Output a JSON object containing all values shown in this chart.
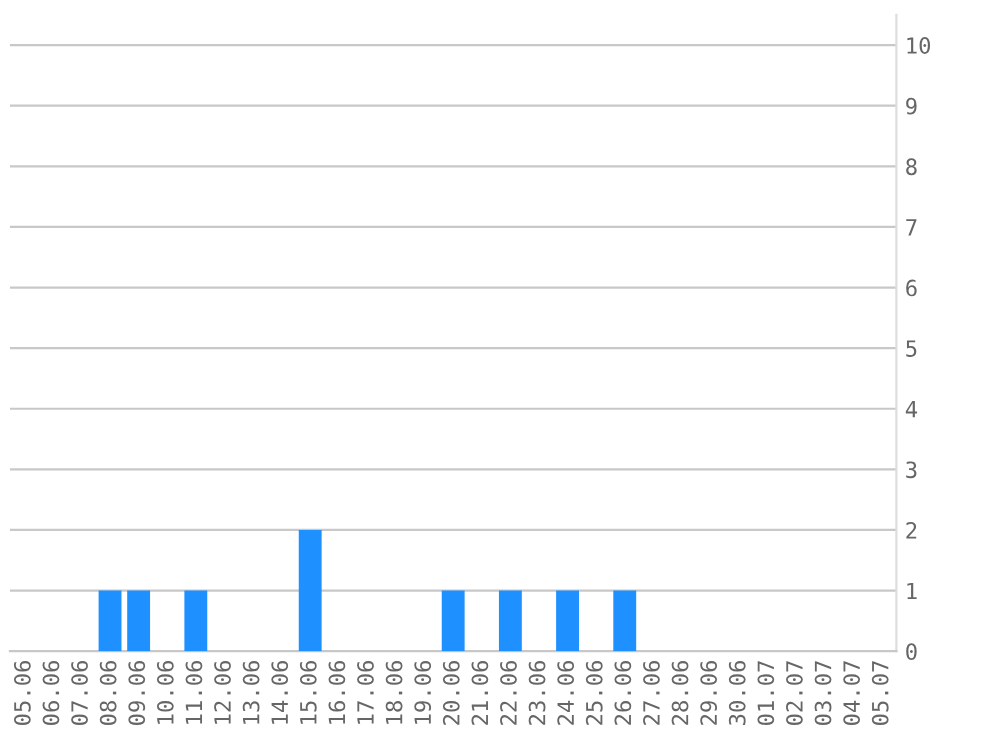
{
  "chart_data": {
    "type": "bar",
    "categories": [
      "05.06",
      "06.06",
      "07.06",
      "08.06",
      "09.06",
      "10.06",
      "11.06",
      "12.06",
      "13.06",
      "14.06",
      "15.06",
      "16.06",
      "17.06",
      "18.06",
      "19.06",
      "20.06",
      "21.06",
      "22.06",
      "23.06",
      "24.06",
      "25.06",
      "26.06",
      "27.06",
      "28.06",
      "29.06",
      "30.06",
      "01.07",
      "02.07",
      "03.07",
      "04.07",
      "05.07"
    ],
    "values": [
      0,
      0,
      0,
      1,
      1,
      0,
      1,
      0,
      0,
      0,
      2,
      0,
      0,
      0,
      0,
      1,
      0,
      1,
      0,
      1,
      0,
      1,
      0,
      0,
      0,
      0,
      0,
      0,
      0,
      0,
      0
    ],
    "color": "#1e90ff",
    "ylim": [
      0,
      10.5
    ],
    "yticks": [
      0,
      1,
      2,
      3,
      4,
      5,
      6,
      7,
      8,
      9,
      10
    ],
    "grid": "y"
  }
}
